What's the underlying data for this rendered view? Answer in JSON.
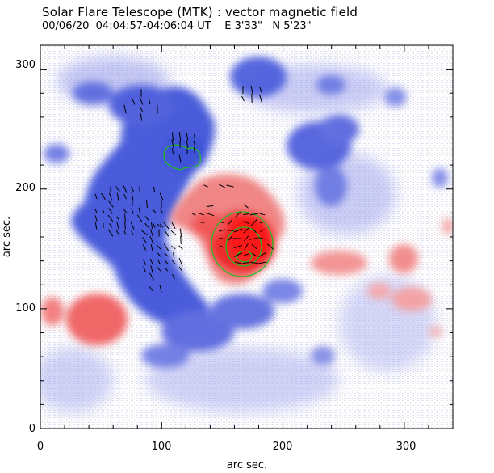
{
  "header": {
    "title": "Solar Flare Telescope (MTK) : vector magnetic field",
    "date": "00/06/20",
    "time_range": "04:04:57-04:06:04 UT",
    "east_offset": "E 3'33\"",
    "north_offset": "N 5'23\""
  },
  "axes": {
    "xlabel": "arc sec.",
    "ylabel": "arc sec.",
    "x_ticks": [
      "0",
      "100",
      "200",
      "300"
    ],
    "y_ticks": [
      "0",
      "100",
      "200",
      "300"
    ],
    "xlim": [
      0,
      340
    ],
    "ylim": [
      0,
      320
    ]
  },
  "colors": {
    "positive_polarity": "#f03030",
    "negative_polarity": "#3a4fd8",
    "contour": "#22bb22",
    "vectors": "#000000",
    "background": "#ffffff"
  }
}
